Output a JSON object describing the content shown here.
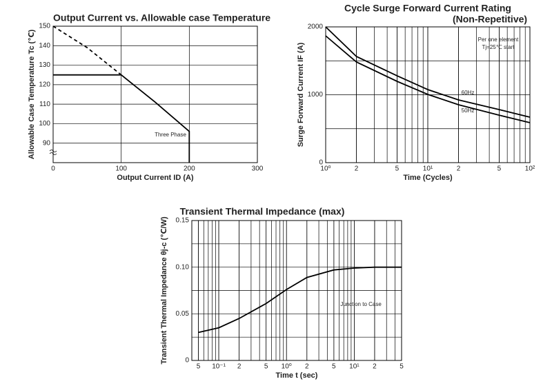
{
  "chart_data": [
    {
      "type": "line",
      "title": "Output Current vs. Allowable case Temperature",
      "xlabel": "Output Current ID (A)",
      "ylabel": "Allowable Case Temperature Tc (℃)",
      "xlim": [
        0,
        300
      ],
      "xticks": [
        0,
        100,
        200,
        300
      ],
      "ylim": [
        80,
        150
      ],
      "yticks": [
        90,
        100,
        110,
        120,
        130,
        140,
        150
      ],
      "grid": true,
      "series": [
        {
          "name": "Three Phase",
          "color": "#000000",
          "style": "solid",
          "x": [
            0,
            100,
            150,
            200,
            200
          ],
          "values": [
            125,
            125,
            111,
            96,
            80
          ]
        },
        {
          "color": "#000000",
          "style": "dashed",
          "x": [
            0,
            50,
            100
          ],
          "values": [
            150,
            139,
            125
          ]
        }
      ]
    },
    {
      "type": "line",
      "title": "Cycle Surge Forward Current Rating",
      "subtitle": "(Non-Repetitive)",
      "xlabel": "Time (Cycles)",
      "ylabel": "Surge Forward Current IF (A)",
      "xscale": "log",
      "xlim": [
        1,
        100
      ],
      "xticks": [
        {
          "value": 1,
          "label": "10⁰"
        },
        2,
        5,
        {
          "value": 10,
          "label": "10¹"
        },
        {
          "value": 20,
          "label": "2"
        },
        {
          "value": 50,
          "label": "5"
        },
        {
          "value": 100,
          "label": "10²"
        }
      ],
      "ylim": [
        0,
        2000
      ],
      "yticks": [
        0,
        1000,
        2000
      ],
      "grid": true,
      "annotation": [
        "Per one element",
        "Tj=25℃ start"
      ],
      "series": [
        {
          "name": "60Hz",
          "color": "#000000",
          "style": "solid",
          "x": [
            1,
            2,
            5,
            10,
            20,
            50,
            100
          ],
          "values": [
            2000,
            1563,
            1280,
            1076,
            924,
            782,
            670
          ]
        },
        {
          "name": "50Hz",
          "color": "#000000",
          "style": "solid",
          "x": [
            1,
            2,
            5,
            10,
            20,
            50,
            100
          ],
          "values": [
            1868,
            1482,
            1198,
            1005,
            853,
            700,
            589
          ]
        }
      ]
    },
    {
      "type": "line",
      "title": "Transient Thermal Impedance (max)",
      "xlabel": "Time t (sec)",
      "ylabel": "Transient Thermal Impedance θj-c (℃/W)",
      "xscale": "log",
      "xlim": [
        0.04,
        50
      ],
      "xticks": [
        {
          "value": 0.05,
          "label": "5"
        },
        {
          "value": 0.1,
          "label": "10⁻¹"
        },
        {
          "value": 0.2,
          "label": "2"
        },
        {
          "value": 0.5,
          "label": "5"
        },
        {
          "value": 1,
          "label": "10⁰"
        },
        2,
        5,
        {
          "value": 10,
          "label": "10¹"
        },
        {
          "value": 20,
          "label": "2"
        },
        {
          "value": 50,
          "label": "5"
        }
      ],
      "ylim": [
        0,
        0.15
      ],
      "yticks": [
        0,
        0.05,
        {
          "value": 0.1,
          "label": "0.10"
        },
        0.15
      ],
      "grid": true,
      "annotation": "Junction to Case",
      "series": [
        {
          "color": "#000000",
          "style": "solid",
          "x": [
            0.05,
            0.1,
            0.2,
            0.5,
            1,
            2,
            5,
            10,
            20,
            50
          ],
          "values": [
            0.03,
            0.035,
            0.045,
            0.061,
            0.076,
            0.089,
            0.097,
            0.099,
            0.1,
            0.1
          ]
        }
      ]
    }
  ]
}
